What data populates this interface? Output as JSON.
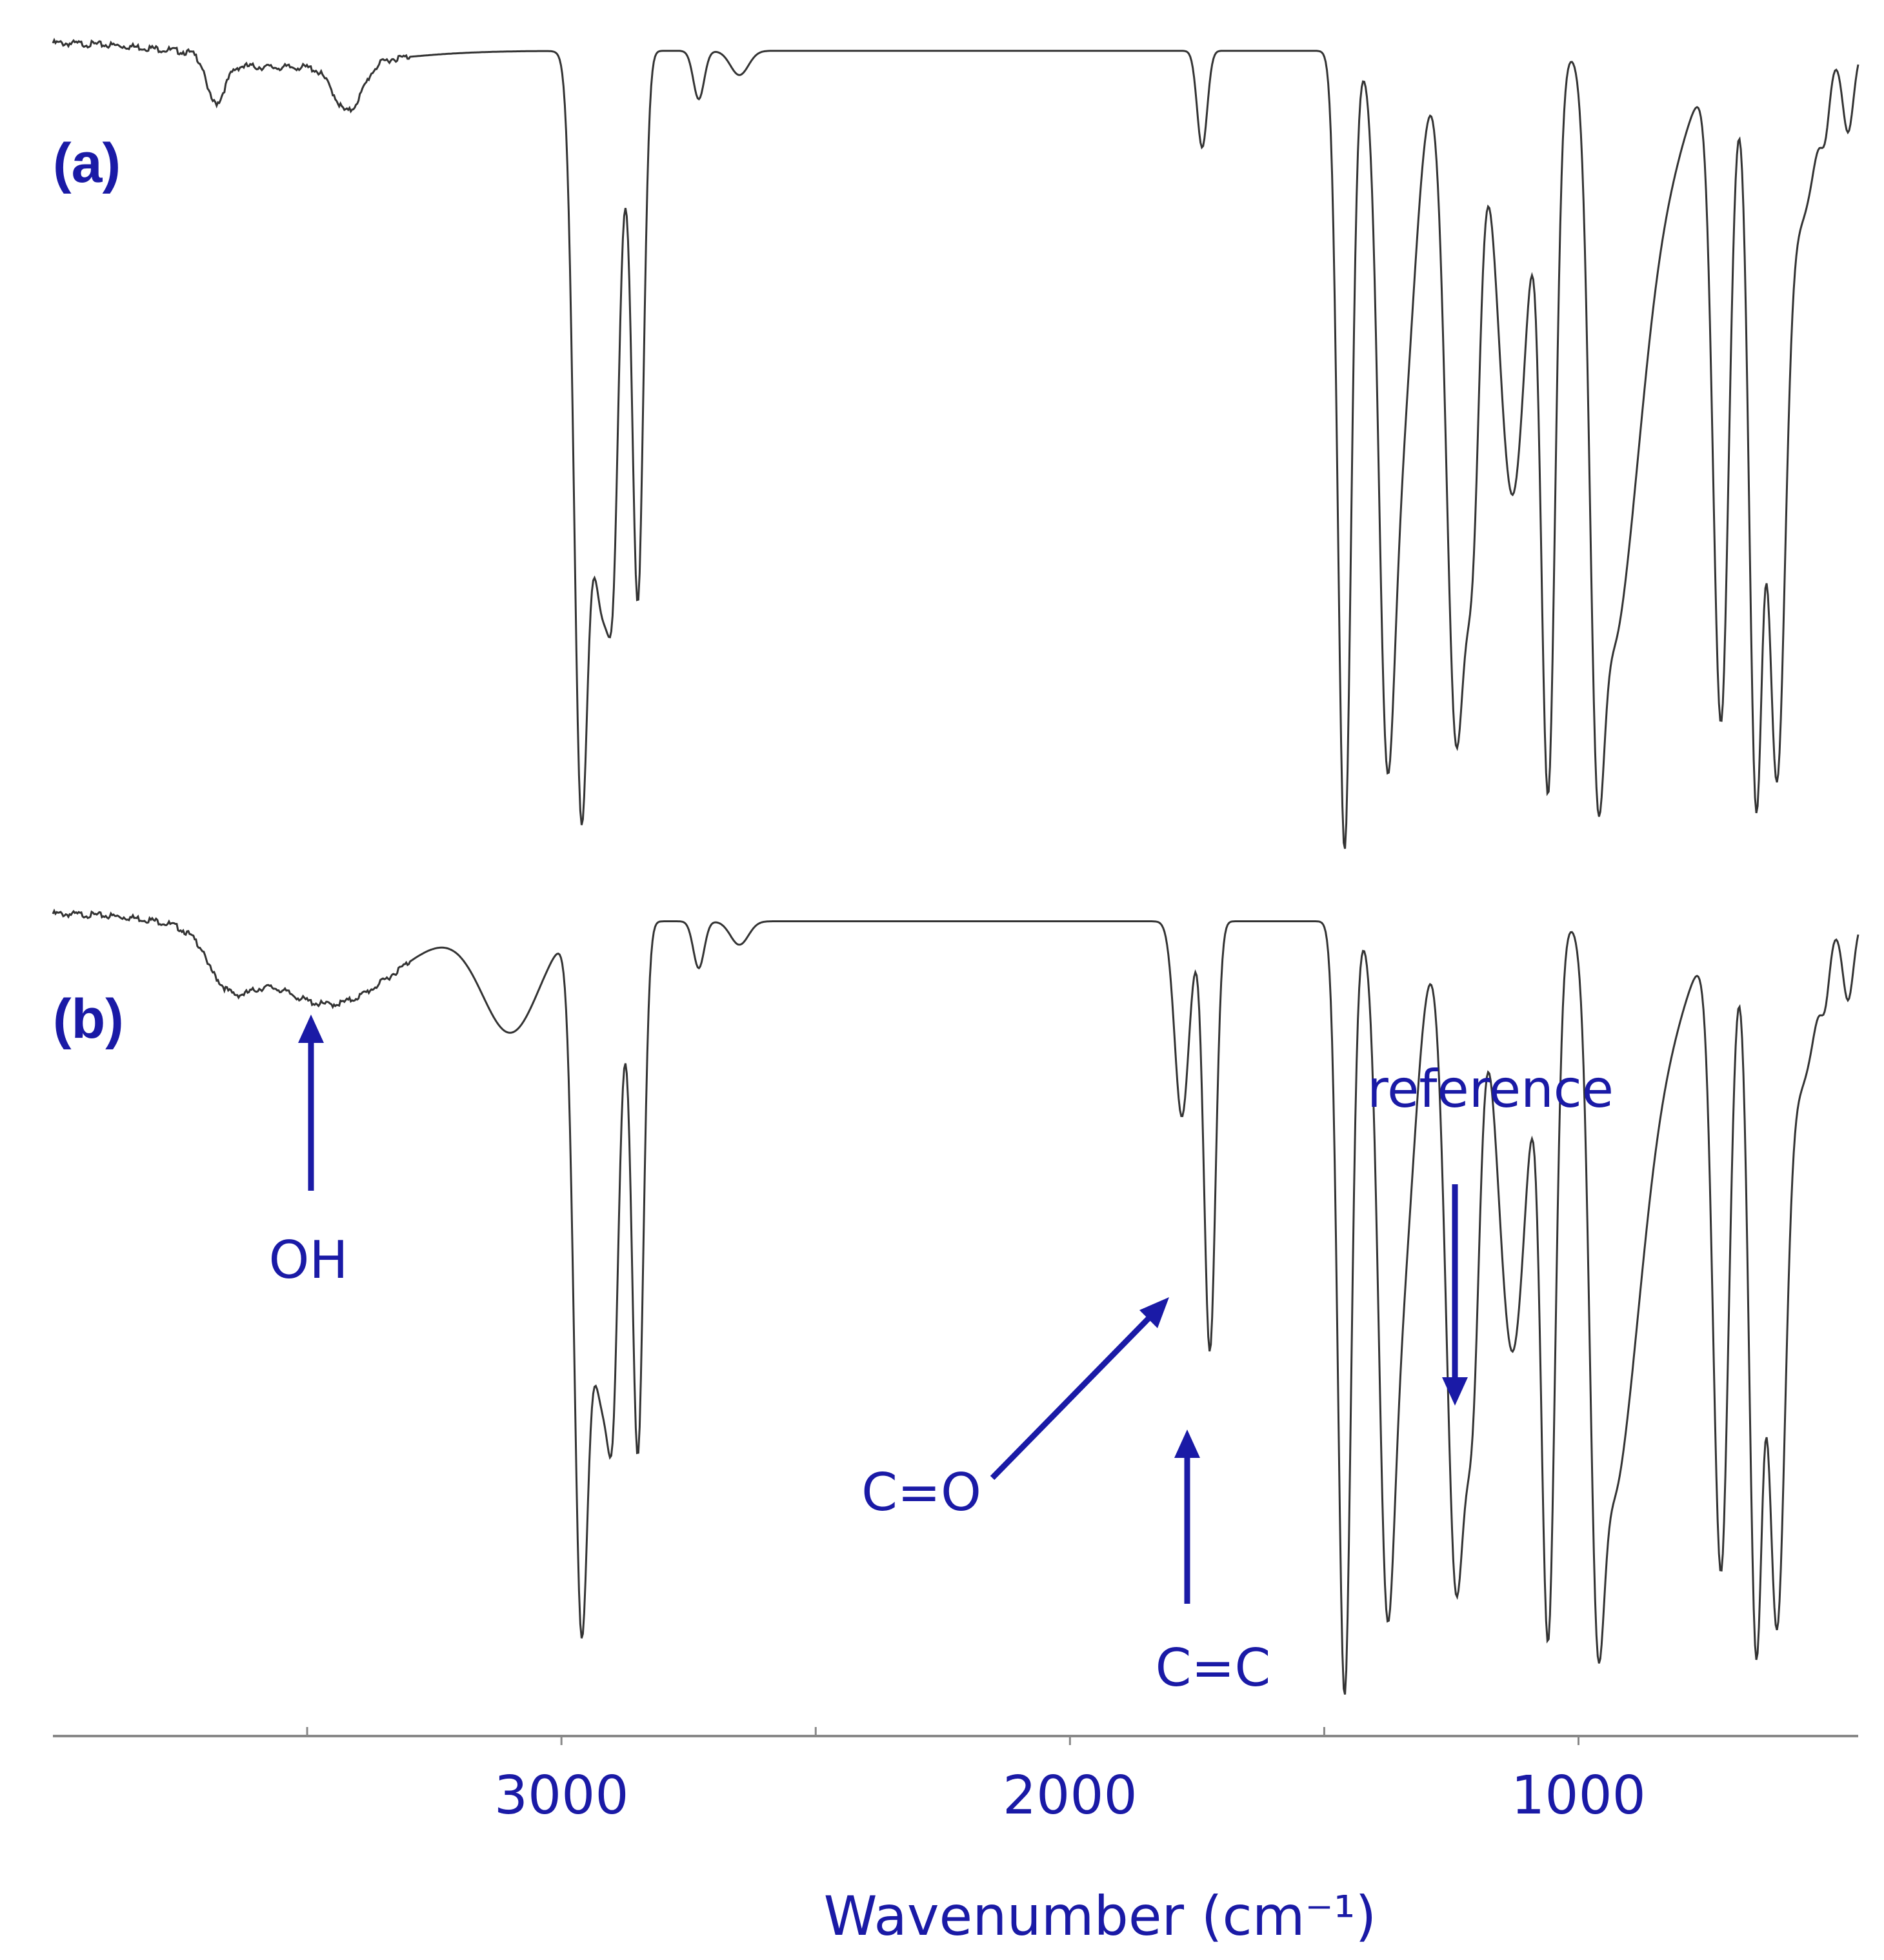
{
  "chart_data": {
    "type": "line",
    "title": "",
    "xlabel": "Wavenumber (cm⁻¹)",
    "ylabel": "",
    "xlim": [
      4000,
      450
    ],
    "x_ticks": [
      {
        "value": 3000,
        "label": "3000"
      },
      {
        "value": 2000,
        "label": "2000"
      },
      {
        "value": 1000,
        "label": "1000"
      }
    ],
    "x_minor_ticks": [
      3500,
      2500,
      1500
    ],
    "grid": false,
    "colors": {
      "trace": "#333333",
      "annotation": "#1a1aa6",
      "axis": "#888888"
    },
    "series": [
      {
        "name": "(a)",
        "label": "(a)",
        "peaks": [
          {
            "x": 3680,
            "depth": 0.05,
            "width": 25
          },
          {
            "x": 3420,
            "depth": 0.06,
            "width": 40
          },
          {
            "x": 2960,
            "depth": 0.95,
            "width": 20
          },
          {
            "x": 2900,
            "depth": 0.42,
            "width": 14
          },
          {
            "x": 2920,
            "depth": 0.68,
            "width": 35
          },
          {
            "x": 2850,
            "depth": 0.68,
            "width": 16
          },
          {
            "x": 2730,
            "depth": 0.06,
            "width": 15
          },
          {
            "x": 2650,
            "depth": 0.03,
            "width": 25
          },
          {
            "x": 1740,
            "depth": 0.12,
            "width": 14
          },
          {
            "x": 1460,
            "depth": 0.99,
            "width": 18
          },
          {
            "x": 1375,
            "depth": 0.85,
            "width": 22
          },
          {
            "x": 1350,
            "depth": 0.45,
            "width": 40
          },
          {
            "x": 1240,
            "depth": 0.85,
            "width": 28
          },
          {
            "x": 1210,
            "depth": 0.55,
            "width": 22
          },
          {
            "x": 1130,
            "depth": 0.55,
            "width": 40
          },
          {
            "x": 1060,
            "depth": 0.92,
            "width": 20
          },
          {
            "x": 960,
            "depth": 0.92,
            "width": 22
          },
          {
            "x": 930,
            "depth": 0.55,
            "width": 35
          },
          {
            "x": 900,
            "depth": 0.4,
            "width": 50
          },
          {
            "x": 850,
            "depth": 0.18,
            "width": 80
          },
          {
            "x": 720,
            "depth": 0.83,
            "width": 22
          },
          {
            "x": 650,
            "depth": 0.94,
            "width": 20
          },
          {
            "x": 610,
            "depth": 0.9,
            "width": 25
          },
          {
            "x": 560,
            "depth": 0.2,
            "width": 40
          },
          {
            "x": 515,
            "depth": 0.06,
            "width": 12
          },
          {
            "x": 470,
            "depth": 0.1,
            "width": 15
          }
        ]
      },
      {
        "name": "(b)",
        "label": "(b)",
        "peaks": [
          {
            "x": 3450,
            "depth": 0.09,
            "width": 180
          },
          {
            "x": 3650,
            "depth": 0.05,
            "width": 60
          },
          {
            "x": 3100,
            "depth": 0.14,
            "width": 80
          },
          {
            "x": 2960,
            "depth": 0.9,
            "width": 20
          },
          {
            "x": 2900,
            "depth": 0.42,
            "width": 14
          },
          {
            "x": 2920,
            "depth": 0.6,
            "width": 35
          },
          {
            "x": 2850,
            "depth": 0.68,
            "width": 16
          },
          {
            "x": 2730,
            "depth": 0.06,
            "width": 15
          },
          {
            "x": 2650,
            "depth": 0.03,
            "width": 25
          },
          {
            "x": 1780,
            "depth": 0.25,
            "width": 20
          },
          {
            "x": 1725,
            "depth": 0.55,
            "width": 16
          },
          {
            "x": 1460,
            "depth": 0.99,
            "width": 18
          },
          {
            "x": 1375,
            "depth": 0.85,
            "width": 22
          },
          {
            "x": 1350,
            "depth": 0.45,
            "width": 40
          },
          {
            "x": 1240,
            "depth": 0.85,
            "width": 28
          },
          {
            "x": 1210,
            "depth": 0.55,
            "width": 22
          },
          {
            "x": 1130,
            "depth": 0.55,
            "width": 40
          },
          {
            "x": 1060,
            "depth": 0.92,
            "width": 20
          },
          {
            "x": 960,
            "depth": 0.92,
            "width": 22
          },
          {
            "x": 930,
            "depth": 0.55,
            "width": 35
          },
          {
            "x": 900,
            "depth": 0.4,
            "width": 50
          },
          {
            "x": 850,
            "depth": 0.18,
            "width": 80
          },
          {
            "x": 720,
            "depth": 0.83,
            "width": 22
          },
          {
            "x": 650,
            "depth": 0.94,
            "width": 20
          },
          {
            "x": 610,
            "depth": 0.9,
            "width": 25
          },
          {
            "x": 560,
            "depth": 0.2,
            "width": 40
          },
          {
            "x": 515,
            "depth": 0.06,
            "width": 12
          },
          {
            "x": 470,
            "depth": 0.1,
            "width": 15
          }
        ]
      }
    ],
    "annotations": [
      {
        "text": "OH",
        "series": "(b)",
        "x": 3450
      },
      {
        "text": "C=O",
        "series": "(b)",
        "x": 1780
      },
      {
        "text": "C=C",
        "series": "(b)",
        "x": 1725
      },
      {
        "text": "reference",
        "series": "(b)",
        "x": 1210
      }
    ]
  }
}
